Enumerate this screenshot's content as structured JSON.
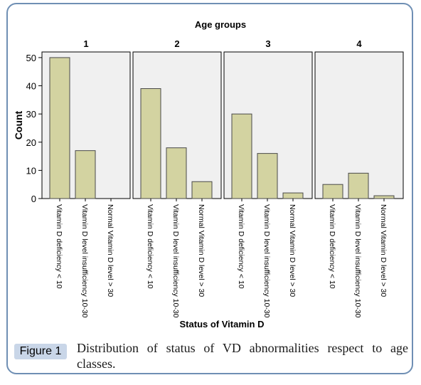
{
  "chart_data": {
    "type": "bar",
    "title": "Age groups",
    "panels": [
      "1",
      "2",
      "3",
      "4"
    ],
    "categories": [
      "Vitamin D deficiency < 10",
      "Vitamin D level insufficiency 10-30",
      "Normal Vitamin D level > 30"
    ],
    "series": [
      {
        "panel": "1",
        "values": [
          50,
          17,
          0
        ]
      },
      {
        "panel": "2",
        "values": [
          39,
          18,
          6
        ]
      },
      {
        "panel": "3",
        "values": [
          30,
          16,
          2
        ]
      },
      {
        "panel": "4",
        "values": [
          5,
          9,
          1
        ]
      }
    ],
    "xlabel": "Status of Vitamin D",
    "ylabel": "Count",
    "ylim": [
      0,
      52
    ],
    "yticks": [
      0,
      10,
      20,
      30,
      40,
      50
    ],
    "grid": false,
    "colors": {
      "bar_fill": "#d3d3a1",
      "bar_stroke": "#4a4a4a",
      "panel_bg": "#f0f0f0",
      "frame_border": "#6f8fb4",
      "badge_bg": "#c9d6e8"
    }
  },
  "caption": {
    "label": "Figure 1",
    "text": "Distribution of status of VD abnormalities respect to age classes."
  }
}
